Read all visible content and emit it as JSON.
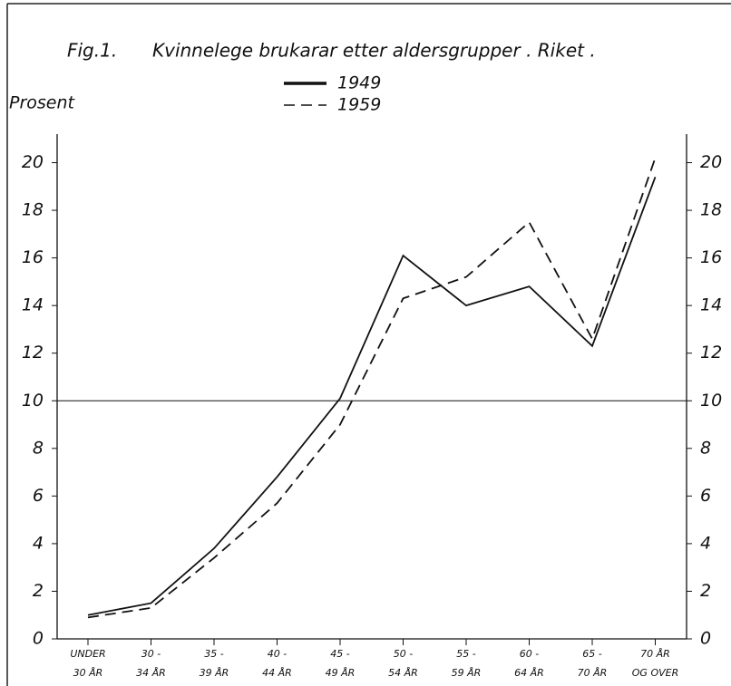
{
  "chart_data": {
    "type": "line",
    "title": "Fig.1.",
    "subtitle": "Kvinnelege brukarar etter aldersgrupper . Riket .",
    "y_label": "Prosent",
    "categories": [
      [
        "UNDER",
        "30 ÅR"
      ],
      [
        "30 -",
        "34 ÅR"
      ],
      [
        "35 -",
        "39 ÅR"
      ],
      [
        "40 -",
        "44 ÅR"
      ],
      [
        "45 -",
        "49 ÅR"
      ],
      [
        "50 -",
        "54 ÅR"
      ],
      [
        "55 -",
        "59 ÅR"
      ],
      [
        "60 -",
        "64 ÅR"
      ],
      [
        "65 -",
        "70 ÅR"
      ],
      [
        "70 ÅR",
        "OG OVER"
      ]
    ],
    "series": [
      {
        "name": "1949",
        "color": "#111111",
        "line_style": "solid",
        "values": [
          1.0,
          1.5,
          3.8,
          6.8,
          10.1,
          16.1,
          14.0,
          14.8,
          12.3,
          19.4
        ]
      },
      {
        "name": "1959",
        "color": "#111111",
        "line_style": "dashed",
        "values": [
          0.9,
          1.3,
          3.4,
          5.7,
          9.0,
          14.3,
          15.2,
          17.5,
          12.6,
          20.2
        ]
      }
    ],
    "ylim": [
      0,
      21.2
    ],
    "yticks": [
      0,
      2,
      4,
      6,
      8,
      10,
      12,
      14,
      16,
      18,
      20
    ],
    "reference_line": 10,
    "grid": false
  }
}
